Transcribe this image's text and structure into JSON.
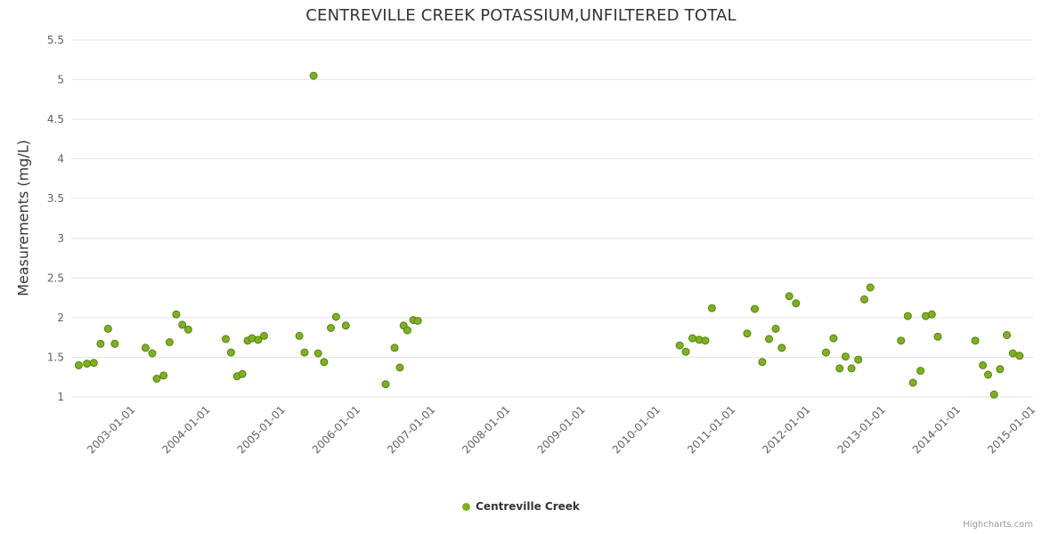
{
  "chart": {
    "title": "CENTREVILLE CREEK POTASSIUM,UNFILTERED TOTAL"
  },
  "legend": {
    "items": [
      {
        "label": "Centreville Creek",
        "color": "#7bb31f"
      }
    ]
  },
  "credits": {
    "label": "Highcharts.com"
  },
  "chart_data": {
    "type": "scatter",
    "title": "CENTREVILLE CREEK POTASSIUM,UNFILTERED TOTAL",
    "xlabel": "",
    "ylabel": "Measurements (mg/L)",
    "xlim": [
      2002.19,
      2015.01
    ],
    "ylim": [
      1,
      5.5
    ],
    "grid": "horizontal",
    "grid_color": "#e6e6e6",
    "tick_color": "#606060",
    "legend_position": "bottom-center",
    "x_ticks": [
      {
        "value": 2003,
        "label": "2003-01-01"
      },
      {
        "value": 2004,
        "label": "2004-01-01"
      },
      {
        "value": 2005,
        "label": "2005-01-01"
      },
      {
        "value": 2006,
        "label": "2006-01-01"
      },
      {
        "value": 2007,
        "label": "2007-01-01"
      },
      {
        "value": 2008,
        "label": "2008-01-01"
      },
      {
        "value": 2009,
        "label": "2009-01-01"
      },
      {
        "value": 2010,
        "label": "2010-01-01"
      },
      {
        "value": 2011,
        "label": "2011-01-01"
      },
      {
        "value": 2012,
        "label": "2012-01-01"
      },
      {
        "value": 2013,
        "label": "2013-01-01"
      },
      {
        "value": 2014,
        "label": "2014-01-01"
      },
      {
        "value": 2015,
        "label": "2015-01-01"
      }
    ],
    "y_ticks": [
      {
        "value": 1,
        "label": "1"
      },
      {
        "value": 1.5,
        "label": "1.5"
      },
      {
        "value": 2,
        "label": "2"
      },
      {
        "value": 2.5,
        "label": "2.5"
      },
      {
        "value": 3,
        "label": "3"
      },
      {
        "value": 3.5,
        "label": "3.5"
      },
      {
        "value": 4,
        "label": "4"
      },
      {
        "value": 4.5,
        "label": "4.5"
      },
      {
        "value": 5,
        "label": "5"
      },
      {
        "value": 5.5,
        "label": "5.5"
      }
    ],
    "series": [
      {
        "name": "Centreville Creek",
        "color": "#7bb31f",
        "marker_stroke": "#597f12",
        "points": [
          [
            2002.29,
            1.4
          ],
          [
            2002.4,
            1.42
          ],
          [
            2002.49,
            1.43
          ],
          [
            2002.58,
            1.67
          ],
          [
            2002.68,
            1.86
          ],
          [
            2002.77,
            1.67
          ],
          [
            2003.18,
            1.62
          ],
          [
            2003.27,
            1.55
          ],
          [
            2003.33,
            1.23
          ],
          [
            2003.42,
            1.27
          ],
          [
            2003.5,
            1.69
          ],
          [
            2003.59,
            2.04
          ],
          [
            2003.67,
            1.91
          ],
          [
            2003.75,
            1.85
          ],
          [
            2004.25,
            1.73
          ],
          [
            2004.32,
            1.56
          ],
          [
            2004.4,
            1.26
          ],
          [
            2004.47,
            1.29
          ],
          [
            2004.54,
            1.71
          ],
          [
            2004.6,
            1.74
          ],
          [
            2004.68,
            1.72
          ],
          [
            2004.76,
            1.77
          ],
          [
            2005.23,
            1.77
          ],
          [
            2005.3,
            1.56
          ],
          [
            2005.42,
            5.05
          ],
          [
            2005.48,
            1.55
          ],
          [
            2005.56,
            1.44
          ],
          [
            2005.65,
            1.87
          ],
          [
            2005.72,
            2.01
          ],
          [
            2005.85,
            1.9
          ],
          [
            2006.38,
            1.16
          ],
          [
            2006.5,
            1.62
          ],
          [
            2006.57,
            1.37
          ],
          [
            2006.62,
            1.9
          ],
          [
            2006.67,
            1.84
          ],
          [
            2006.75,
            1.97
          ],
          [
            2006.81,
            1.96
          ],
          [
            2010.3,
            1.65
          ],
          [
            2010.38,
            1.57
          ],
          [
            2010.47,
            1.74
          ],
          [
            2010.56,
            1.72
          ],
          [
            2010.64,
            1.71
          ],
          [
            2010.73,
            2.12
          ],
          [
            2011.2,
            1.8
          ],
          [
            2011.3,
            2.11
          ],
          [
            2011.4,
            1.44
          ],
          [
            2011.49,
            1.73
          ],
          [
            2011.58,
            1.86
          ],
          [
            2011.66,
            1.62
          ],
          [
            2011.76,
            2.27
          ],
          [
            2011.85,
            2.18
          ],
          [
            2012.25,
            1.56
          ],
          [
            2012.35,
            1.74
          ],
          [
            2012.43,
            1.36
          ],
          [
            2012.51,
            1.51
          ],
          [
            2012.59,
            1.36
          ],
          [
            2012.68,
            1.47
          ],
          [
            2012.76,
            2.23
          ],
          [
            2012.84,
            2.38
          ],
          [
            2013.25,
            1.71
          ],
          [
            2013.34,
            2.02
          ],
          [
            2013.41,
            1.18
          ],
          [
            2013.51,
            1.33
          ],
          [
            2013.58,
            2.02
          ],
          [
            2013.66,
            2.04
          ],
          [
            2013.74,
            1.76
          ],
          [
            2014.24,
            1.71
          ],
          [
            2014.34,
            1.4
          ],
          [
            2014.41,
            1.28
          ],
          [
            2014.49,
            1.03
          ],
          [
            2014.57,
            1.35
          ],
          [
            2014.66,
            1.78
          ],
          [
            2014.74,
            1.55
          ],
          [
            2014.83,
            1.52
          ]
        ]
      }
    ]
  }
}
